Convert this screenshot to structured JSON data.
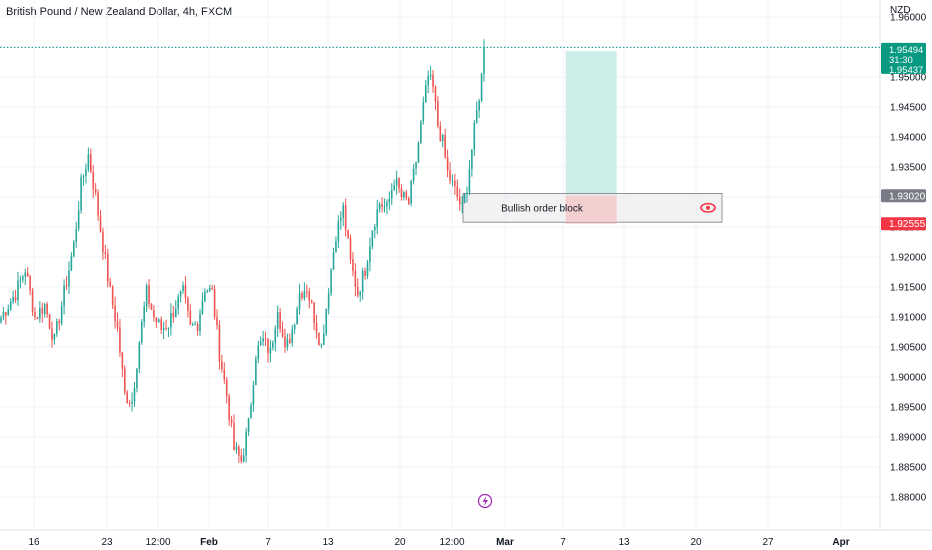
{
  "header": {
    "symbol_title": "British Pound / New Zealand Dollar, 4h, FXCM",
    "currency": "NZD"
  },
  "colors": {
    "up": "#26a69a",
    "down": "#ef5350",
    "target_fill": "#cdeee9",
    "stop_fill": "#f5cccd",
    "order_block_fill": "#eaeaea",
    "order_block_border": "#787b86",
    "current_price_badge": "#089981",
    "order_block_badge": "#787b86",
    "stop_badge": "#f23645",
    "lightning_color": "#9c27b0",
    "eye_color": "#f23645"
  },
  "price_labels": {
    "current_price": "1.95494",
    "countdown": "31:30",
    "second_price": "1.95437",
    "order_block_price": "1.93020",
    "stop_price": "1.92555"
  },
  "annotations": {
    "order_block_label": "Bullish order block",
    "eye_icon": "eye-icon",
    "lightning_icon": "lightning-icon"
  },
  "chart_data": {
    "type": "candlestick",
    "title": "British Pound / New Zealand Dollar, 4h, FXCM",
    "y_unit": "NZD",
    "y_ticks": [
      "1.96000",
      "1.95500",
      "1.95000",
      "1.94500",
      "1.94000",
      "1.93500",
      "1.93000",
      "1.92500",
      "1.92000",
      "1.91500",
      "1.91000",
      "1.90500",
      "1.90000",
      "1.89500",
      "1.89000",
      "1.88500",
      "1.88000"
    ],
    "ylim": [
      1.8775,
      1.9615
    ],
    "x_ticks": [
      {
        "label": "16",
        "bold": false
      },
      {
        "label": "23",
        "bold": false
      },
      {
        "label": "12:00",
        "bold": false
      },
      {
        "label": "Feb",
        "bold": true
      },
      {
        "label": "7",
        "bold": false
      },
      {
        "label": "13",
        "bold": false
      },
      {
        "label": "20",
        "bold": false
      },
      {
        "label": "12:00",
        "bold": false
      },
      {
        "label": "Mar",
        "bold": true
      },
      {
        "label": "7",
        "bold": false
      },
      {
        "label": "13",
        "bold": false
      },
      {
        "label": "20",
        "bold": false
      },
      {
        "label": "27",
        "bold": false
      },
      {
        "label": "Apr",
        "bold": true
      }
    ],
    "close_anchors": [
      [
        0,
        1.91
      ],
      [
        6,
        1.914
      ],
      [
        10,
        1.918
      ],
      [
        14,
        1.91
      ],
      [
        18,
        1.912
      ],
      [
        22,
        1.906
      ],
      [
        26,
        1.914
      ],
      [
        30,
        1.922
      ],
      [
        33,
        1.932
      ],
      [
        36,
        1.937
      ],
      [
        39,
        1.93
      ],
      [
        42,
        1.922
      ],
      [
        45,
        1.914
      ],
      [
        48,
        1.908
      ],
      [
        51,
        1.897
      ],
      [
        54,
        1.896
      ],
      [
        57,
        1.906
      ],
      [
        60,
        1.914
      ],
      [
        63,
        1.91
      ],
      [
        66,
        1.908
      ],
      [
        69,
        1.909
      ],
      [
        72,
        1.912
      ],
      [
        75,
        1.914
      ],
      [
        78,
        1.908
      ],
      [
        81,
        1.909
      ],
      [
        84,
        1.915
      ],
      [
        87,
        1.914
      ],
      [
        90,
        1.904
      ],
      [
        93,
        1.897
      ],
      [
        96,
        1.888
      ],
      [
        99,
        1.886
      ],
      [
        102,
        1.892
      ],
      [
        105,
        1.904
      ],
      [
        108,
        1.906
      ],
      [
        111,
        1.904
      ],
      [
        114,
        1.912
      ],
      [
        117,
        1.904
      ],
      [
        120,
        1.908
      ],
      [
        123,
        1.914
      ],
      [
        126,
        1.915
      ],
      [
        129,
        1.91
      ],
      [
        132,
        1.905
      ],
      [
        135,
        1.915
      ],
      [
        138,
        1.924
      ],
      [
        141,
        1.928
      ],
      [
        144,
        1.919
      ],
      [
        147,
        1.914
      ],
      [
        150,
        1.918
      ],
      [
        153,
        1.925
      ],
      [
        156,
        1.929
      ],
      [
        159,
        1.928
      ],
      [
        162,
        1.933
      ],
      [
        165,
        1.93
      ],
      [
        168,
        1.929
      ],
      [
        171,
        1.936
      ],
      [
        174,
        1.945
      ],
      [
        176,
        1.95
      ],
      [
        178,
        1.948
      ],
      [
        180,
        1.942
      ],
      [
        182,
        1.939
      ],
      [
        184,
        1.934
      ],
      [
        186,
        1.932
      ],
      [
        188,
        1.93
      ],
      [
        190,
        1.928
      ],
      [
        192,
        1.932
      ],
      [
        194,
        1.938
      ],
      [
        196,
        1.944
      ],
      [
        198,
        1.95
      ],
      [
        199,
        1.9549
      ]
    ],
    "range_start": 0,
    "range_end": 199,
    "risk_reward": {
      "entry": 1.9302,
      "target": 1.9543,
      "stop": 1.92555,
      "start_time_fraction": 0.6457,
      "end_time_fraction": 0.7039
    },
    "order_block": {
      "top": 1.9306,
      "bottom": 1.9258,
      "label": "Bullish order block"
    },
    "current_price": 1.95494,
    "grid": true
  }
}
